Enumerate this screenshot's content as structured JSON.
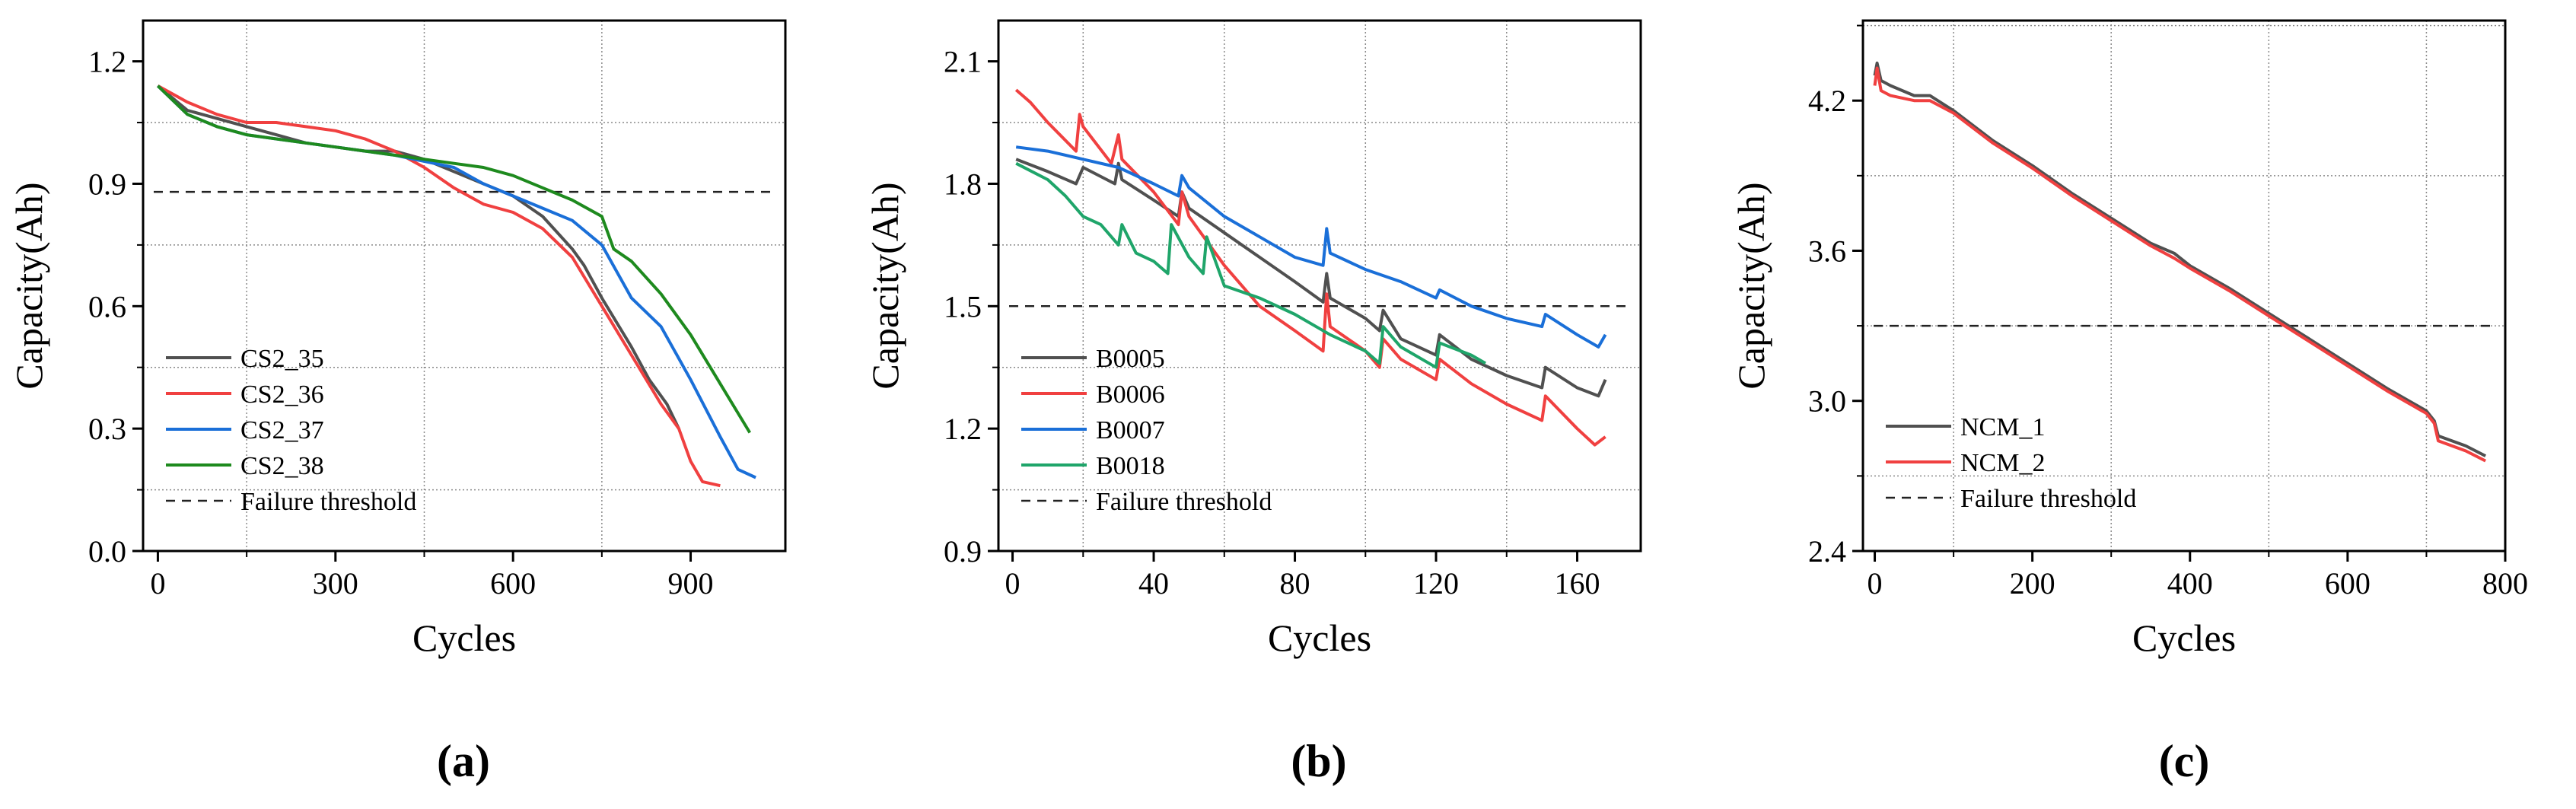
{
  "chart_data": [
    {
      "panel": "(a)",
      "type": "line",
      "xlabel": "Cycles",
      "ylabel": "Capacity(Ah)",
      "xlim": [
        -25,
        1060
      ],
      "ylim": [
        0.0,
        1.3
      ],
      "xticks": [
        0,
        300,
        600,
        900
      ],
      "yticks": [
        0.0,
        0.3,
        0.6,
        0.9,
        1.2
      ],
      "ytick_labels": [
        "0.0",
        "0.3",
        "0.6",
        "0.9",
        "1.2"
      ],
      "xgrid": [
        150,
        450,
        750
      ],
      "ygrid": [
        0.15,
        0.45,
        0.75,
        1.05
      ],
      "threshold": 0.88,
      "series": [
        {
          "name": "CS2_35",
          "color": "#505050",
          "x": [
            0,
            50,
            100,
            150,
            200,
            250,
            300,
            350,
            400,
            450,
            500,
            550,
            600,
            650,
            700,
            720,
            750,
            800,
            830,
            860,
            880
          ],
          "y": [
            1.14,
            1.08,
            1.06,
            1.04,
            1.02,
            1.0,
            0.99,
            0.98,
            0.98,
            0.96,
            0.93,
            0.9,
            0.87,
            0.82,
            0.74,
            0.7,
            0.62,
            0.5,
            0.42,
            0.36,
            0.3
          ]
        },
        {
          "name": "CS2_36",
          "color": "#f04040",
          "x": [
            0,
            50,
            100,
            150,
            200,
            250,
            300,
            350,
            400,
            450,
            500,
            550,
            600,
            650,
            700,
            750,
            800,
            850,
            880,
            900,
            920,
            950
          ],
          "y": [
            1.14,
            1.1,
            1.07,
            1.05,
            1.05,
            1.04,
            1.03,
            1.01,
            0.98,
            0.94,
            0.89,
            0.85,
            0.83,
            0.79,
            0.72,
            0.6,
            0.48,
            0.36,
            0.3,
            0.22,
            0.17,
            0.16
          ]
        },
        {
          "name": "CS2_37",
          "color": "#1a6fd8",
          "x": [
            0,
            50,
            100,
            150,
            200,
            300,
            400,
            500,
            550,
            600,
            650,
            700,
            750,
            800,
            850,
            900,
            950,
            980,
            1010
          ],
          "y": [
            1.14,
            1.07,
            1.04,
            1.02,
            1.01,
            0.99,
            0.97,
            0.94,
            0.9,
            0.87,
            0.84,
            0.81,
            0.75,
            0.62,
            0.55,
            0.42,
            0.28,
            0.2,
            0.18
          ]
        },
        {
          "name": "CS2_38",
          "color": "#1e8a1e",
          "x": [
            0,
            50,
            100,
            150,
            200,
            300,
            400,
            500,
            550,
            600,
            650,
            700,
            750,
            770,
            800,
            850,
            900,
            950,
            1000
          ],
          "y": [
            1.14,
            1.07,
            1.04,
            1.02,
            1.01,
            0.99,
            0.97,
            0.95,
            0.94,
            0.92,
            0.89,
            0.86,
            0.82,
            0.74,
            0.71,
            0.63,
            0.53,
            0.41,
            0.29
          ]
        }
      ],
      "legend": [
        "CS2_35",
        "CS2_36",
        "CS2_37",
        "CS2_38",
        "Failure threshold"
      ],
      "legend_position": "bottom-left"
    },
    {
      "panel": "(b)",
      "type": "line",
      "xlabel": "Cycles",
      "ylabel": "Capacity(Ah)",
      "xlim": [
        -4,
        178
      ],
      "ylim": [
        0.9,
        2.2
      ],
      "xticks": [
        0,
        40,
        80,
        120,
        160
      ],
      "yticks": [
        0.9,
        1.2,
        1.5,
        1.8,
        2.1
      ],
      "ytick_labels": [
        "0.9",
        "1.2",
        "1.5",
        "1.8",
        "2.1"
      ],
      "xgrid": [
        20,
        60,
        100,
        140
      ],
      "ygrid": [
        1.05,
        1.35,
        1.65,
        1.95
      ],
      "threshold": 1.5,
      "series": [
        {
          "name": "B0005",
          "color": "#505050",
          "x": [
            1,
            10,
            18,
            20,
            29,
            30,
            31,
            40,
            47,
            48,
            50,
            60,
            70,
            80,
            88,
            89,
            90,
            100,
            104,
            105,
            110,
            120,
            121,
            130,
            140,
            150,
            151,
            160,
            166,
            168
          ],
          "y": [
            1.86,
            1.83,
            1.8,
            1.84,
            1.8,
            1.85,
            1.81,
            1.76,
            1.72,
            1.78,
            1.74,
            1.68,
            1.62,
            1.56,
            1.51,
            1.58,
            1.52,
            1.47,
            1.44,
            1.49,
            1.42,
            1.38,
            1.43,
            1.37,
            1.33,
            1.3,
            1.35,
            1.3,
            1.28,
            1.32
          ]
        },
        {
          "name": "B0006",
          "color": "#f04040",
          "x": [
            1,
            5,
            10,
            18,
            19,
            20,
            28,
            30,
            31,
            40,
            47,
            48,
            50,
            60,
            70,
            80,
            88,
            89,
            90,
            100,
            104,
            105,
            110,
            120,
            121,
            130,
            140,
            150,
            151,
            160,
            165,
            168
          ],
          "y": [
            2.03,
            2.0,
            1.95,
            1.88,
            1.97,
            1.94,
            1.85,
            1.92,
            1.86,
            1.78,
            1.7,
            1.78,
            1.72,
            1.6,
            1.5,
            1.44,
            1.39,
            1.53,
            1.45,
            1.39,
            1.35,
            1.42,
            1.37,
            1.32,
            1.37,
            1.31,
            1.26,
            1.22,
            1.28,
            1.2,
            1.16,
            1.18
          ]
        },
        {
          "name": "B0007",
          "color": "#1a6fd8",
          "x": [
            1,
            10,
            20,
            30,
            40,
            47,
            48,
            50,
            60,
            70,
            80,
            88,
            89,
            90,
            100,
            110,
            120,
            121,
            130,
            140,
            150,
            151,
            160,
            166,
            168
          ],
          "y": [
            1.89,
            1.88,
            1.86,
            1.84,
            1.8,
            1.77,
            1.82,
            1.79,
            1.72,
            1.67,
            1.62,
            1.6,
            1.69,
            1.63,
            1.59,
            1.56,
            1.52,
            1.54,
            1.5,
            1.47,
            1.45,
            1.48,
            1.43,
            1.4,
            1.43
          ]
        },
        {
          "name": "B0018",
          "color": "#1fa56a",
          "x": [
            1,
            10,
            15,
            20,
            25,
            30,
            31,
            35,
            40,
            44,
            45,
            50,
            54,
            55,
            60,
            70,
            80,
            90,
            100,
            104,
            105,
            110,
            120,
            121,
            130,
            134
          ],
          "y": [
            1.85,
            1.81,
            1.77,
            1.72,
            1.7,
            1.65,
            1.7,
            1.63,
            1.61,
            1.58,
            1.7,
            1.62,
            1.58,
            1.67,
            1.55,
            1.52,
            1.48,
            1.43,
            1.39,
            1.36,
            1.45,
            1.4,
            1.35,
            1.41,
            1.38,
            1.36
          ]
        }
      ],
      "legend": [
        "B0005",
        "B0006",
        "B0007",
        "B0018",
        "Failure threshold"
      ],
      "legend_position": "bottom-left"
    },
    {
      "panel": "(c)",
      "type": "line",
      "xlabel": "Cycles",
      "ylabel": "Capacity(Ah)",
      "xlim": [
        -15,
        800
      ],
      "ylim": [
        2.4,
        4.52
      ],
      "xticks": [
        0,
        200,
        400,
        600,
        800
      ],
      "yticks": [
        2.4,
        3.0,
        3.6,
        4.2
      ],
      "ytick_labels": [
        "2.4",
        "3.0",
        "3.6",
        "4.2"
      ],
      "xgrid": [
        100,
        300,
        500,
        700
      ],
      "ygrid": [
        2.7,
        3.3,
        3.9,
        4.5
      ],
      "threshold": 3.3,
      "series": [
        {
          "name": "NCM_1",
          "color": "#505050",
          "x": [
            0,
            3,
            8,
            20,
            50,
            70,
            100,
            150,
            200,
            250,
            300,
            350,
            380,
            400,
            450,
            500,
            550,
            600,
            650,
            700,
            710,
            715,
            750,
            775
          ],
          "y": [
            4.3,
            4.35,
            4.28,
            4.26,
            4.22,
            4.22,
            4.16,
            4.04,
            3.94,
            3.83,
            3.73,
            3.63,
            3.59,
            3.54,
            3.45,
            3.35,
            3.25,
            3.15,
            3.05,
            2.96,
            2.92,
            2.86,
            2.82,
            2.78
          ]
        },
        {
          "name": "NCM_2",
          "color": "#f04040",
          "x": [
            0,
            3,
            8,
            20,
            50,
            70,
            100,
            150,
            200,
            250,
            300,
            350,
            380,
            400,
            450,
            500,
            550,
            600,
            650,
            700,
            710,
            715,
            750,
            775
          ],
          "y": [
            4.26,
            4.33,
            4.24,
            4.22,
            4.2,
            4.2,
            4.15,
            4.03,
            3.93,
            3.82,
            3.72,
            3.62,
            3.57,
            3.53,
            3.44,
            3.34,
            3.24,
            3.14,
            3.04,
            2.95,
            2.91,
            2.84,
            2.8,
            2.76
          ]
        }
      ],
      "legend": [
        "NCM_1",
        "NCM_2",
        "Failure threshold"
      ],
      "legend_position": "bottom-left"
    }
  ]
}
